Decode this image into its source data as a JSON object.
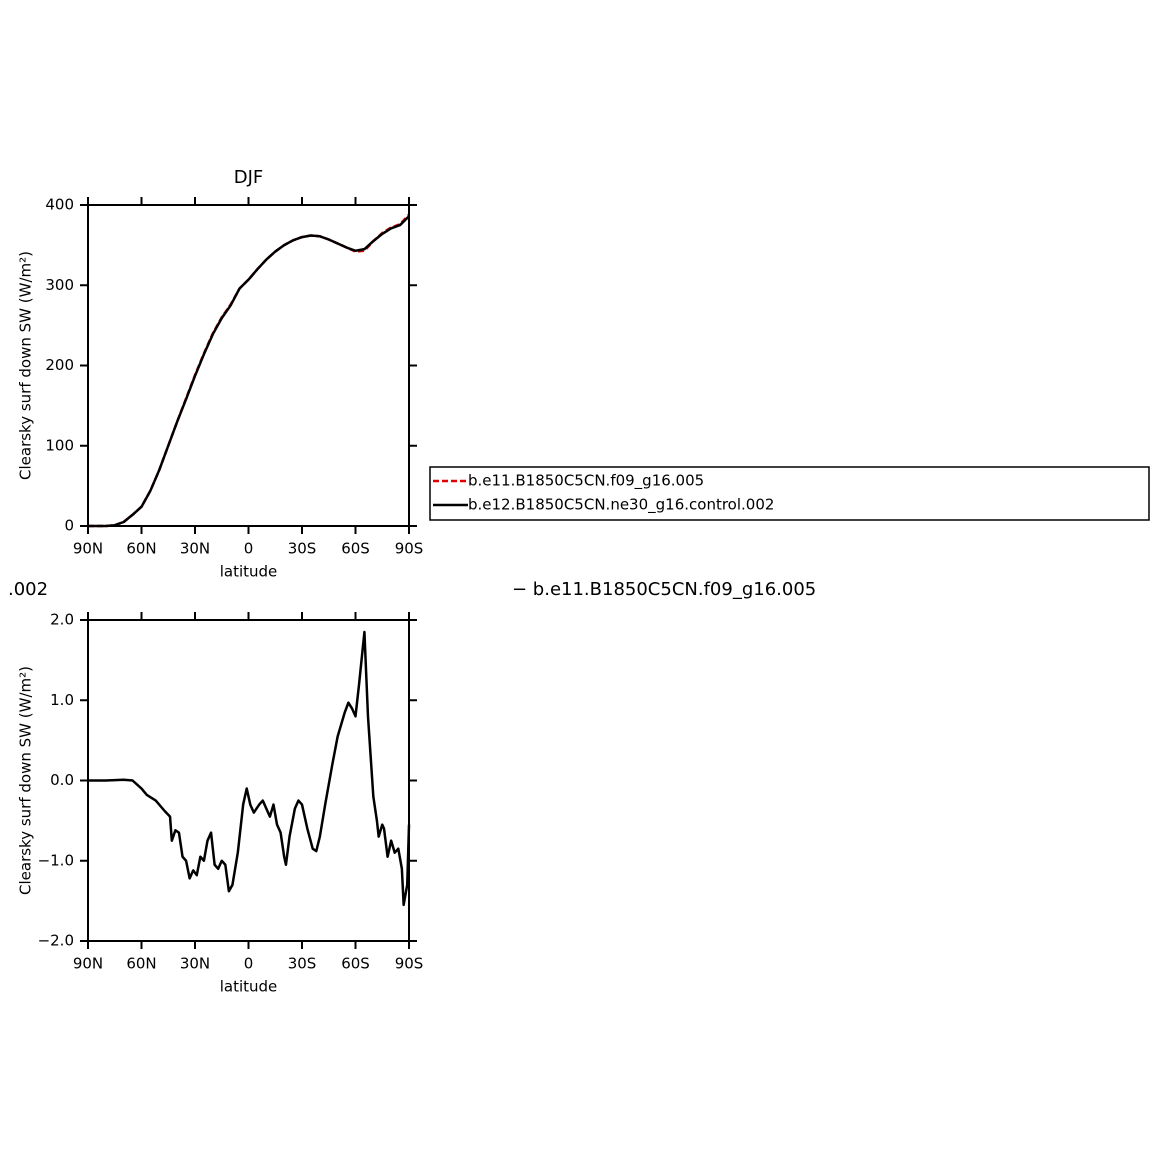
{
  "chart_data": [
    {
      "type": "line",
      "title": "DJF",
      "xlabel": "latitude",
      "ylabel": "Clearsky surf down SW (W/m²)",
      "x": [
        90,
        85,
        80,
        75,
        70,
        65,
        60,
        55,
        50,
        45,
        40,
        35,
        30,
        25,
        20,
        15,
        10,
        5,
        0,
        -5,
        -10,
        -15,
        -20,
        -25,
        -30,
        -35,
        -40,
        -45,
        -50,
        -55,
        -60,
        -65,
        -70,
        -75,
        -80,
        -85,
        -90
      ],
      "series": [
        {
          "name": "b.e11.B1850C5CN.f09_g16.005",
          "color": "#e00000",
          "dash": true,
          "values": [
            0,
            0,
            0,
            1,
            5,
            14,
            24,
            44,
            70,
            100,
            130,
            159,
            188,
            215,
            240,
            260,
            276,
            296,
            307,
            320,
            332,
            342,
            350,
            356,
            360,
            362,
            361,
            357,
            352,
            347,
            342,
            343,
            355,
            365,
            372,
            376,
            388
          ]
        },
        {
          "name": "b.e12.B1850C5CN.ne30_g16.control.002",
          "color": "#000000",
          "dash": false,
          "values": [
            0,
            0,
            0,
            1,
            5,
            14,
            24,
            44,
            70,
            100,
            130,
            158,
            187,
            214,
            239,
            259,
            275,
            296,
            307,
            320,
            332,
            342,
            350,
            356,
            360,
            362,
            361,
            357,
            352,
            347,
            343,
            345,
            355,
            364,
            371,
            375,
            386
          ]
        }
      ],
      "xlim": [
        90,
        -90
      ],
      "xticks": [
        {
          "value": 90,
          "label": "90N"
        },
        {
          "value": 60,
          "label": "60N"
        },
        {
          "value": 30,
          "label": "30N"
        },
        0,
        {
          "value": -30,
          "label": "30S"
        },
        {
          "value": -60,
          "label": "60S"
        },
        {
          "value": -90,
          "label": "90S"
        }
      ],
      "ylim": [
        0,
        400
      ],
      "yticks": [
        0,
        100,
        200,
        300,
        400
      ]
    },
    {
      "type": "line",
      "title": [
        ".002",
        "− b.e11.B1850C5CN.f09_g16.005"
      ],
      "xlabel": "latitude",
      "ylabel": "Clearsky surf down SW (W/m²)",
      "x": [
        90,
        80,
        70,
        65,
        60,
        57,
        52,
        47,
        44,
        43,
        41,
        39,
        37,
        35,
        33,
        31,
        29,
        27,
        25,
        23,
        21,
        19,
        17,
        15,
        13,
        11,
        9,
        6,
        3,
        1,
        -1,
        -3,
        -6,
        -8,
        -10,
        -12,
        -14,
        -16,
        -18,
        -20,
        -21,
        -23,
        -26,
        -28,
        -30,
        -33,
        -36,
        -38,
        -40,
        -43,
        -47,
        -50,
        -54,
        -56,
        -58,
        -60,
        -62,
        -65,
        -67,
        -70,
        -72,
        -73,
        -75,
        -76,
        -78,
        -80,
        -82,
        -84,
        -86,
        -87,
        -89,
        -90
      ],
      "series": [
        {
          "color": "#000000",
          "dash": false,
          "values": [
            0,
            0,
            0.01,
            0,
            -0.1,
            -0.18,
            -0.25,
            -0.38,
            -0.45,
            -0.75,
            -0.62,
            -0.65,
            -0.95,
            -1.0,
            -1.22,
            -1.12,
            -1.18,
            -0.95,
            -1.0,
            -0.75,
            -0.65,
            -1.05,
            -1.1,
            -1.0,
            -1.05,
            -1.38,
            -1.3,
            -0.9,
            -0.3,
            -0.1,
            -0.3,
            -0.4,
            -0.3,
            -0.25,
            -0.35,
            -0.45,
            -0.3,
            -0.55,
            -0.65,
            -0.95,
            -1.05,
            -0.7,
            -0.35,
            -0.25,
            -0.3,
            -0.6,
            -0.85,
            -0.88,
            -0.7,
            -0.3,
            0.2,
            0.55,
            0.85,
            0.97,
            0.9,
            0.8,
            1.2,
            1.85,
            0.8,
            -0.2,
            -0.5,
            -0.7,
            -0.55,
            -0.6,
            -0.95,
            -0.75,
            -0.9,
            -0.85,
            -1.1,
            -1.55,
            -1.3,
            -0.55
          ]
        }
      ],
      "xlim": [
        90,
        -90
      ],
      "xticks": [
        {
          "value": 90,
          "label": "90N"
        },
        {
          "value": 60,
          "label": "60N"
        },
        {
          "value": 30,
          "label": "30N"
        },
        0,
        {
          "value": -30,
          "label": "30S"
        },
        {
          "value": -60,
          "label": "60S"
        },
        {
          "value": -90,
          "label": "90S"
        }
      ],
      "ylim": [
        -2,
        2
      ],
      "yticks": [
        {
          "value": 2,
          "label": "2.0"
        },
        {
          "value": 1,
          "label": "1.0"
        },
        {
          "value": 0,
          "label": "0.0"
        },
        {
          "value": -1,
          "label": "−1.0"
        },
        {
          "value": -2,
          "label": "−2.0"
        }
      ]
    }
  ]
}
